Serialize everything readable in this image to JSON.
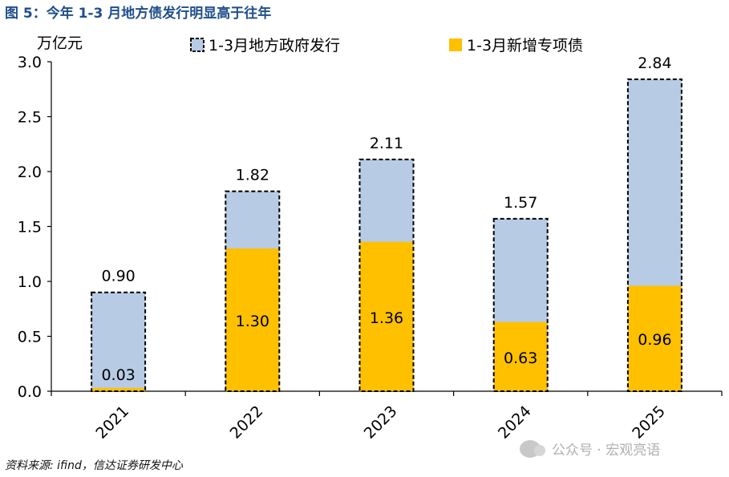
{
  "figure_title": "图 5：今年 1-3 月地方债发行明显高于往年",
  "source": "资料来源: ifind，信达证券研发中心",
  "watermark": "公众号 · 宏观亮语",
  "colors": {
    "total": "#b7cbe4",
    "special": "#ffc000",
    "title": "#1f4e8c"
  },
  "chart_data": {
    "type": "bar",
    "title": "",
    "ylabel": "万亿元",
    "xlabel": "",
    "ylim": [
      0,
      3.0
    ],
    "yticks": [
      "0.0",
      "0.5",
      "1.0",
      "1.5",
      "2.0",
      "2.5",
      "3.0"
    ],
    "categories": [
      "2021",
      "2022",
      "2023",
      "2024",
      "2025"
    ],
    "series": [
      {
        "name": "1-3月地方政府发行",
        "values": [
          0.9,
          1.82,
          2.11,
          1.57,
          2.84
        ],
        "labels": [
          "0.90",
          "1.82",
          "2.11",
          "1.57",
          "2.84"
        ]
      },
      {
        "name": "1-3月新增专项债",
        "values": [
          0.03,
          1.3,
          1.36,
          0.63,
          0.96
        ],
        "labels": [
          "0.03",
          "1.30",
          "1.36",
          "0.63",
          "0.96"
        ]
      }
    ],
    "legend_position": "top"
  }
}
